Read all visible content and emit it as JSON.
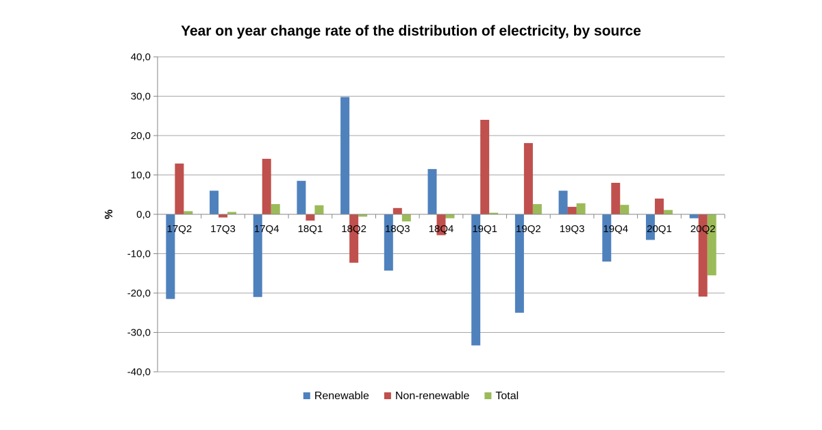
{
  "chart_data": {
    "type": "bar",
    "title": "Year on year change rate of the distribution of electricity, by source",
    "xlabel": "",
    "ylabel": "%",
    "ylim": [
      -40,
      40
    ],
    "yticks": [
      "40,0",
      "30,0",
      "20,0",
      "10,0",
      "0,0",
      "-10,0",
      "-20,0",
      "-30,0",
      "-40,0"
    ],
    "ytick_values": [
      40,
      30,
      20,
      10,
      0,
      -10,
      -20,
      -30,
      -40
    ],
    "grid": true,
    "legend_position": "bottom",
    "categories": [
      "17Q2",
      "17Q3",
      "17Q4",
      "18Q1",
      "18Q2",
      "18Q3",
      "18Q4",
      "19Q1",
      "19Q2",
      "19Q3",
      "19Q4",
      "20Q1",
      "20Q2"
    ],
    "series": [
      {
        "name": "Renewable",
        "color": "#4F81BD",
        "values": [
          -21.5,
          6.0,
          -21.0,
          8.5,
          29.8,
          -14.3,
          11.5,
          -33.3,
          -25.0,
          6.0,
          -12.0,
          -6.5,
          -1.0
        ]
      },
      {
        "name": "Non-renewable",
        "color": "#C0504D",
        "values": [
          12.9,
          -0.8,
          14.1,
          -1.6,
          -12.3,
          1.6,
          -5.3,
          24.0,
          18.1,
          1.9,
          8.0,
          4.0,
          -20.9
        ]
      },
      {
        "name": "Total",
        "color": "#9BBB59",
        "values": [
          0.8,
          0.6,
          2.6,
          2.3,
          -0.6,
          -1.8,
          -1.0,
          0.4,
          2.6,
          2.8,
          2.4,
          1.1,
          -15.5
        ]
      }
    ]
  }
}
